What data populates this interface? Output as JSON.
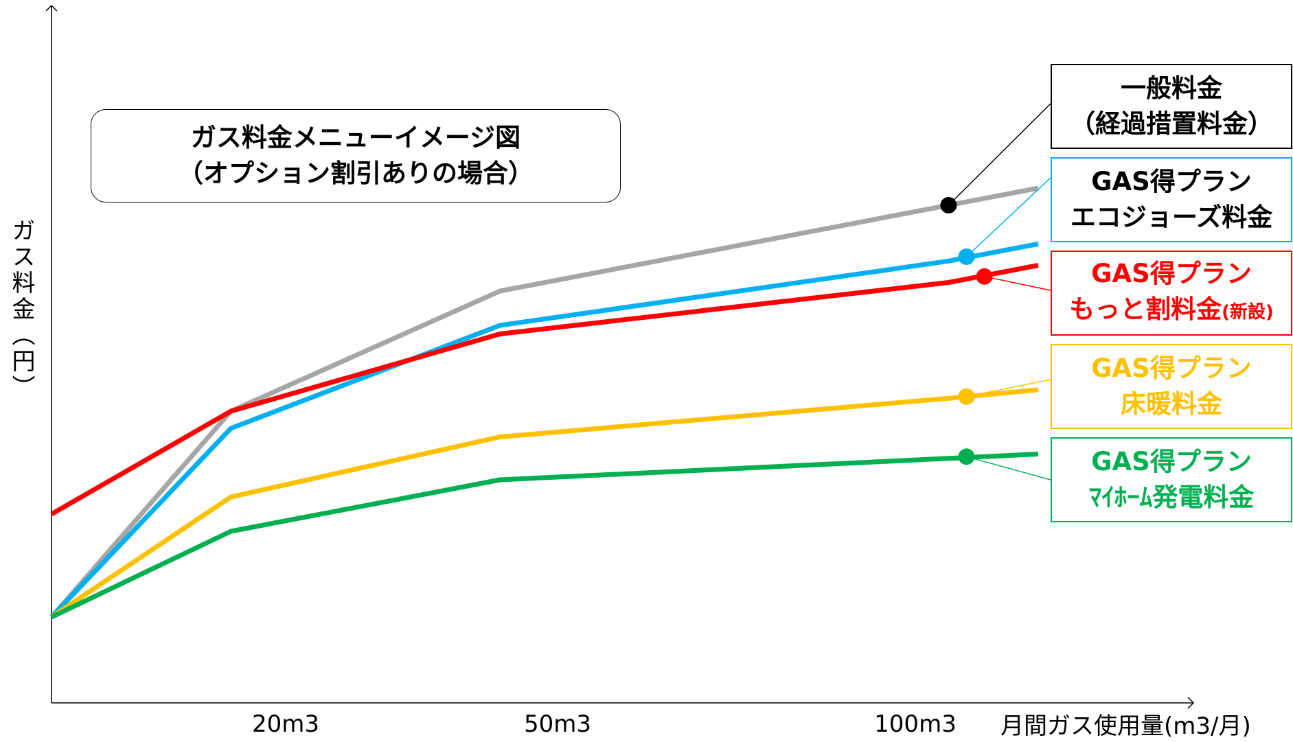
{
  "chart_data": {
    "type": "line",
    "title_lines": [
      "ガス料金メニューイメージ図",
      "（オプション割引ありの場合）"
    ],
    "ylabel": "ガス料金（円）",
    "xlabel": "月間ガス使用量(m3/月)",
    "x_ticks": [
      {
        "label": "20m3",
        "value": 20
      },
      {
        "label": "50m3",
        "value": 50
      },
      {
        "label": "100m3",
        "value": 100
      }
    ],
    "series": [
      {
        "name_lines": [
          "一般料金",
          "（経過措置料金）"
        ],
        "color": "#a6a6a6",
        "text_color": "#000000",
        "border_color": "#000000",
        "dot_color": "#000000",
        "x": [
          0,
          20,
          50,
          100,
          110
        ],
        "y": [
          100,
          340,
          480,
          580,
          600
        ]
      },
      {
        "name_lines": [
          "GAS得プラン",
          "エコジョーズ料金"
        ],
        "color": "#00b0f0",
        "text_color": "#000000",
        "border_color": "#00b0f0",
        "dot_color": "#00b0f0",
        "x": [
          0,
          20,
          50,
          100,
          110
        ],
        "y": [
          100,
          320,
          440,
          515,
          535
        ]
      },
      {
        "name_lines": [
          "GAS得プラン",
          "もっと割料金"
        ],
        "name_suffix": "(新設)",
        "color": "#ff0000",
        "text_color": "#ff0000",
        "border_color": "#ff0000",
        "dot_color": "#ff0000",
        "x": [
          0,
          20,
          50,
          100,
          110
        ],
        "y": [
          220,
          340,
          430,
          490,
          510
        ]
      },
      {
        "name_lines": [
          "GAS得プラン",
          "床暖料金"
        ],
        "color": "#ffc000",
        "text_color": "#ffc000",
        "border_color": "#ffc000",
        "dot_color": "#ffc000",
        "x": [
          0,
          20,
          50,
          100,
          110
        ],
        "y": [
          100,
          240,
          310,
          355,
          365
        ]
      },
      {
        "name_lines": [
          "GAS得プラン",
          "ﾏｲﾎｰﾑ発電料金"
        ],
        "color": "#00b050",
        "text_color": "#00b050",
        "border_color": "#00b050",
        "dot_color": "#00b050",
        "x": [
          0,
          20,
          50,
          100,
          110
        ],
        "y": [
          100,
          200,
          260,
          285,
          290
        ]
      }
    ],
    "marker_points": [
      {
        "series": 0,
        "x": 100,
        "y": 580
      },
      {
        "series": 1,
        "x": 102,
        "y": 520
      },
      {
        "series": 2,
        "x": 104,
        "y": 497
      },
      {
        "series": 3,
        "x": 102,
        "y": 357
      },
      {
        "series": 4,
        "x": 102,
        "y": 287
      }
    ],
    "xlim": [
      0,
      110
    ],
    "ylim": [
      0,
      800
    ],
    "grid": false,
    "legend": "right"
  }
}
